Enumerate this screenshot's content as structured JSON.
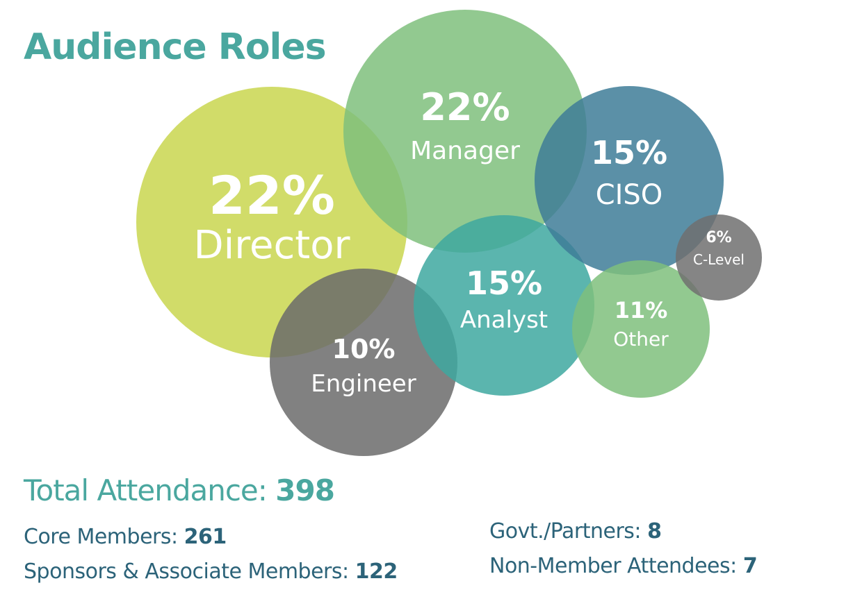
{
  "title": "Audience Roles",
  "chart_data": {
    "type": "bubble",
    "title": "Audience Roles",
    "series": [
      {
        "label": "Director",
        "value": 22,
        "display": "22%",
        "color": "#c9d64f"
      },
      {
        "label": "Manager",
        "value": 22,
        "display": "22%",
        "color": "#7fc07d"
      },
      {
        "label": "Engineer",
        "value": 10,
        "display": "10%",
        "color": "#6b6b6b"
      },
      {
        "label": "Analyst",
        "value": 15,
        "display": "15%",
        "color": "#3ea8a0"
      },
      {
        "label": "CISO",
        "value": 15,
        "display": "15%",
        "color": "#3e7d98"
      },
      {
        "label": "Other",
        "value": 11,
        "display": "11%",
        "color": "#7fc07d"
      },
      {
        "label": "C-Level",
        "value": 6,
        "display": "6%",
        "color": "#707070"
      }
    ]
  },
  "summary": {
    "total_label": "Total Attendance:",
    "total_value": "398",
    "stats": [
      {
        "label": "Core Members:",
        "value": "261"
      },
      {
        "label": "Sponsors & Associate Members:",
        "value": "122"
      },
      {
        "label": "Govt./Partners:",
        "value": "8"
      },
      {
        "label": "Non-Member Attendees:",
        "value": "7"
      }
    ]
  }
}
